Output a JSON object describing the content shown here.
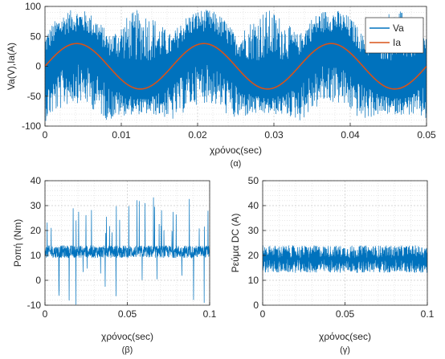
{
  "chart_data": [
    {
      "id": "a",
      "type": "line",
      "sublabel": "(α)",
      "xlabel": "χρόνος(sec)",
      "ylabel": "Va(V),Ia(A)",
      "xlim": [
        0,
        0.05
      ],
      "ylim": [
        -100,
        100
      ],
      "xticks": [
        0,
        0.01,
        0.02,
        0.03,
        0.04,
        0.05
      ],
      "xtick_labels": [
        "0",
        "0.01",
        "0.02",
        "0.03",
        "0.04",
        "0.05"
      ],
      "yticks": [
        -100,
        -50,
        0,
        50,
        100
      ],
      "ytick_labels": [
        "-100",
        "-50",
        "0",
        "50",
        "100"
      ],
      "grid": true,
      "legend": "top-right",
      "series": [
        {
          "name": "Va",
          "color": "#0072BD",
          "kind": "pwm-noise",
          "frequency_hz": 60,
          "fundamental_amplitude": 38,
          "switching_band": [
            -95,
            95
          ]
        },
        {
          "name": "Ia",
          "color": "#D95319",
          "kind": "sine",
          "frequency_hz": 60,
          "amplitude": 38,
          "phase_deg": 0
        }
      ]
    },
    {
      "id": "b",
      "type": "line",
      "sublabel": "(β)",
      "xlabel": "χρόνος(sec)",
      "ylabel": "Ροπή (Nm)",
      "xlim": [
        0,
        0.1
      ],
      "ylim": [
        -10,
        40
      ],
      "xticks": [
        0,
        0.05,
        0.1
      ],
      "xtick_labels": [
        "0",
        "0.05",
        "0.1"
      ],
      "yticks": [
        -10,
        0,
        10,
        20,
        30,
        40
      ],
      "ytick_labels": [
        "-10",
        "0",
        "10",
        "20",
        "30",
        "40"
      ],
      "grid": true,
      "series": [
        {
          "name": "",
          "color": "#0072BD",
          "kind": "noise-spikes",
          "mean": 11.5,
          "band": [
            9,
            14
          ],
          "spike_max": 34,
          "spike_min": -10
        }
      ]
    },
    {
      "id": "c",
      "type": "line",
      "sublabel": "(γ)",
      "xlabel": "χρόνος(sec)",
      "ylabel": "Ρεύμα DC (A)",
      "xlim": [
        0,
        0.1
      ],
      "ylim": [
        0,
        50
      ],
      "xticks": [
        0,
        0.05,
        0.1
      ],
      "xtick_labels": [
        "0",
        "0.05",
        "0.1"
      ],
      "yticks": [
        0,
        10,
        20,
        30,
        40,
        50
      ],
      "ytick_labels": [
        "0",
        "10",
        "20",
        "30",
        "40",
        "50"
      ],
      "grid": true,
      "series": [
        {
          "name": "",
          "color": "#0072BD",
          "kind": "noise-band",
          "mean": 17.5,
          "band": [
            13,
            24
          ]
        }
      ]
    }
  ]
}
